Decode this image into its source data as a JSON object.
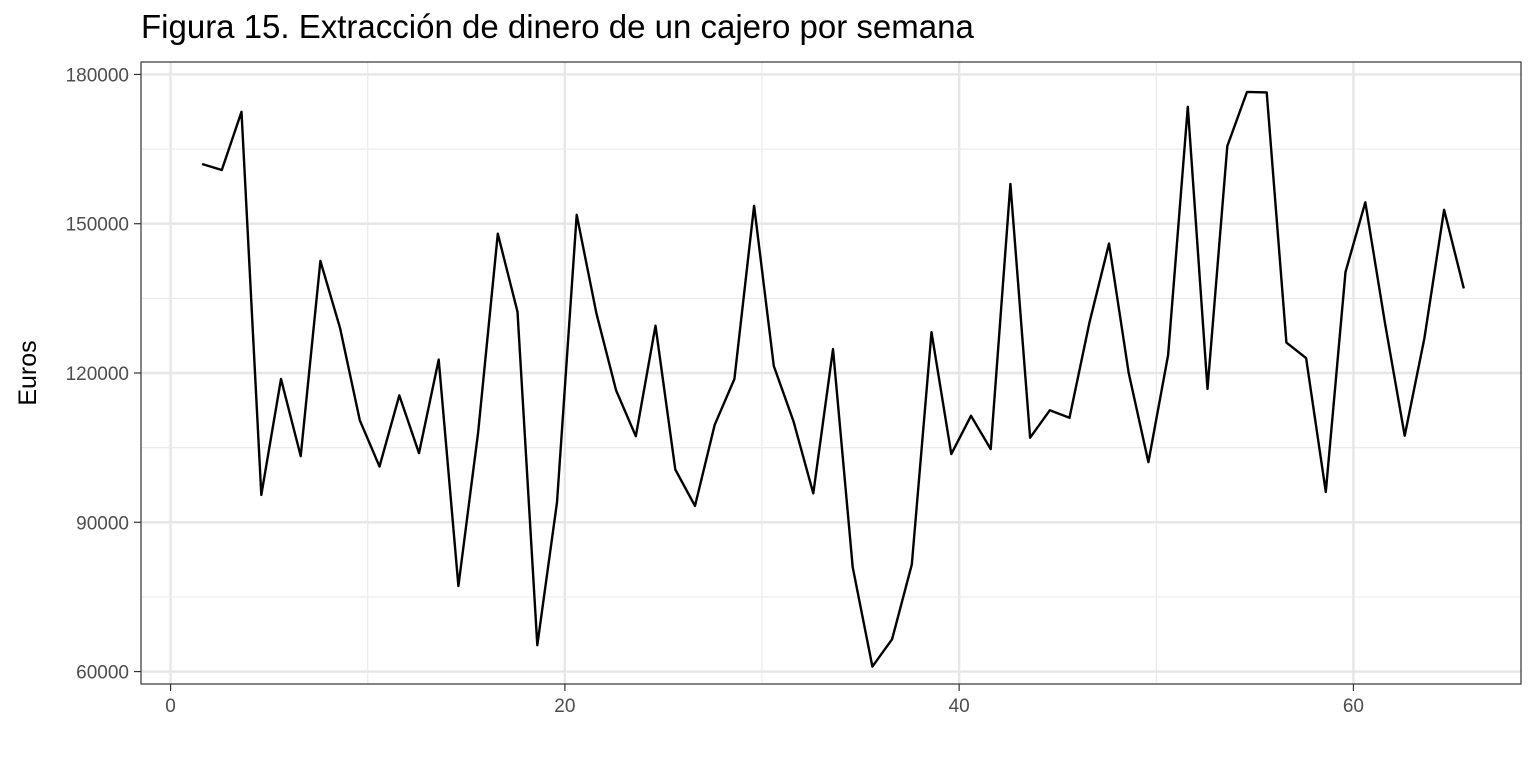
{
  "chart_data": {
    "type": "line",
    "title": "Figura 15. Extracción de dinero de un cajero por semana",
    "xlabel": "",
    "ylabel": "Euros",
    "xlim": [
      -1.5,
      68.5
    ],
    "ylim": [
      57500,
      182500
    ],
    "x_ticks": [
      0,
      20,
      40,
      60
    ],
    "y_ticks": [
      60000,
      90000,
      120000,
      150000,
      180000
    ],
    "x_minor_ticks": [
      10,
      30,
      50
    ],
    "y_minor_ticks": [
      75000,
      105000,
      135000,
      165000
    ],
    "grid": true,
    "line_color": "#000000",
    "series": [
      {
        "x": [
          1.6,
          2.6,
          3.6,
          4.6,
          5.6,
          6.6,
          7.6,
          8.6,
          9.6,
          10.6,
          11.6,
          12.6,
          13.6,
          14.6,
          15.6,
          16.6,
          17.6,
          18.6,
          19.6,
          20.6,
          21.6,
          22.6,
          23.6,
          24.6,
          25.6,
          26.6,
          27.6,
          28.6,
          29.6,
          30.6,
          31.6,
          32.6,
          33.6,
          34.6,
          35.6,
          36.6,
          37.6,
          38.6,
          39.6,
          40.6,
          41.6,
          42.6,
          43.6,
          44.6,
          45.6,
          46.6,
          47.6,
          48.6,
          49.6,
          50.6,
          51.6,
          52.6,
          53.6,
          54.6,
          55.6,
          56.6,
          57.6,
          58.6,
          59.6,
          60.6,
          61.6,
          62.6,
          63.6,
          64.6,
          65.6
        ],
        "values": [
          162000,
          160800,
          172500,
          95500,
          118800,
          103300,
          142500,
          129000,
          110500,
          101200,
          115500,
          103900,
          122700,
          77200,
          108000,
          148000,
          132300,
          65300,
          94000,
          151800,
          132000,
          116500,
          107300,
          129500,
          100600,
          93300,
          109600,
          118800,
          153600,
          121400,
          110300,
          95800,
          124800,
          81000,
          61000,
          66500,
          81500,
          128200,
          103700,
          111400,
          104700,
          158000,
          107000,
          112500,
          111000,
          130000,
          146000,
          120000,
          102100,
          123600,
          173500,
          116800,
          165600,
          176500,
          176400,
          126100,
          123000,
          96100,
          140300,
          154300,
          130000,
          107400,
          127000,
          152800,
          137000
        ]
      }
    ]
  }
}
